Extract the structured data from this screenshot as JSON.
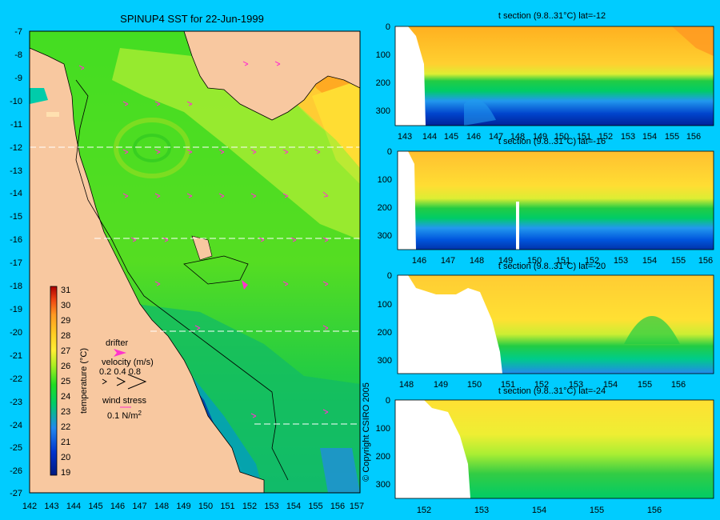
{
  "map": {
    "title": "SPINUP4 SST for 22-Jun-1999",
    "lat_labels": [
      "-7",
      "-8",
      "-9",
      "-10",
      "-11",
      "-12",
      "-13",
      "-14",
      "-15",
      "-16",
      "-17",
      "-18",
      "-19",
      "-20",
      "-21",
      "-22",
      "-23",
      "-24",
      "-25",
      "-26",
      "-27"
    ],
    "lon_labels": [
      "142",
      "143",
      "144",
      "145",
      "146",
      "147",
      "148",
      "149",
      "150",
      "151",
      "152",
      "153",
      "154",
      "155",
      "156",
      "157"
    ],
    "colorbar": {
      "label": "temperature (°C)",
      "ticks": [
        "31",
        "30",
        "29",
        "28",
        "27",
        "26",
        "25",
        "24",
        "23",
        "22",
        "21",
        "20",
        "19"
      ]
    },
    "legend": {
      "drifter": "drifter",
      "velocity": "velocity (m/s)",
      "velocity_scale": "0.2 0.4 0.8",
      "wind_stress": "wind stress",
      "wind_value": "0.1 N/m",
      "wind_exp": "2"
    },
    "copyright": "© Copyright CSIRO 2005",
    "section_lines_lat": [
      "-12",
      "-16",
      "-20",
      "-24"
    ]
  },
  "sections": [
    {
      "title": "t section (9.8..31°C) lat=-12",
      "depth_ticks": [
        "0",
        "100",
        "200",
        "300"
      ],
      "lon_ticks": [
        "143",
        "144",
        "145",
        "146",
        "147",
        "148",
        "149",
        "150",
        "151",
        "152",
        "153",
        "154",
        "155",
        "156"
      ]
    },
    {
      "title": "t section (9.8..31°C) lat=-16",
      "depth_ticks": [
        "0",
        "100",
        "200",
        "300"
      ],
      "lon_ticks": [
        "146",
        "147",
        "148",
        "149",
        "150",
        "151",
        "152",
        "153",
        "154",
        "155",
        "156"
      ]
    },
    {
      "title": "t section (9.8..31°C) lat=-20",
      "depth_ticks": [
        "0",
        "100",
        "200",
        "300"
      ],
      "lon_ticks": [
        "148",
        "149",
        "150",
        "151",
        "152",
        "153",
        "154",
        "155",
        "156"
      ]
    },
    {
      "title": "t section (9.8..31°C) lat=-24",
      "depth_ticks": [
        "0",
        "100",
        "200",
        "300"
      ],
      "lon_ticks": [
        "152",
        "153",
        "154",
        "155",
        "156"
      ]
    }
  ],
  "colors": {
    "background": "#00ccff",
    "land": "#f8c8a0",
    "arrow": "#ff33cc"
  }
}
